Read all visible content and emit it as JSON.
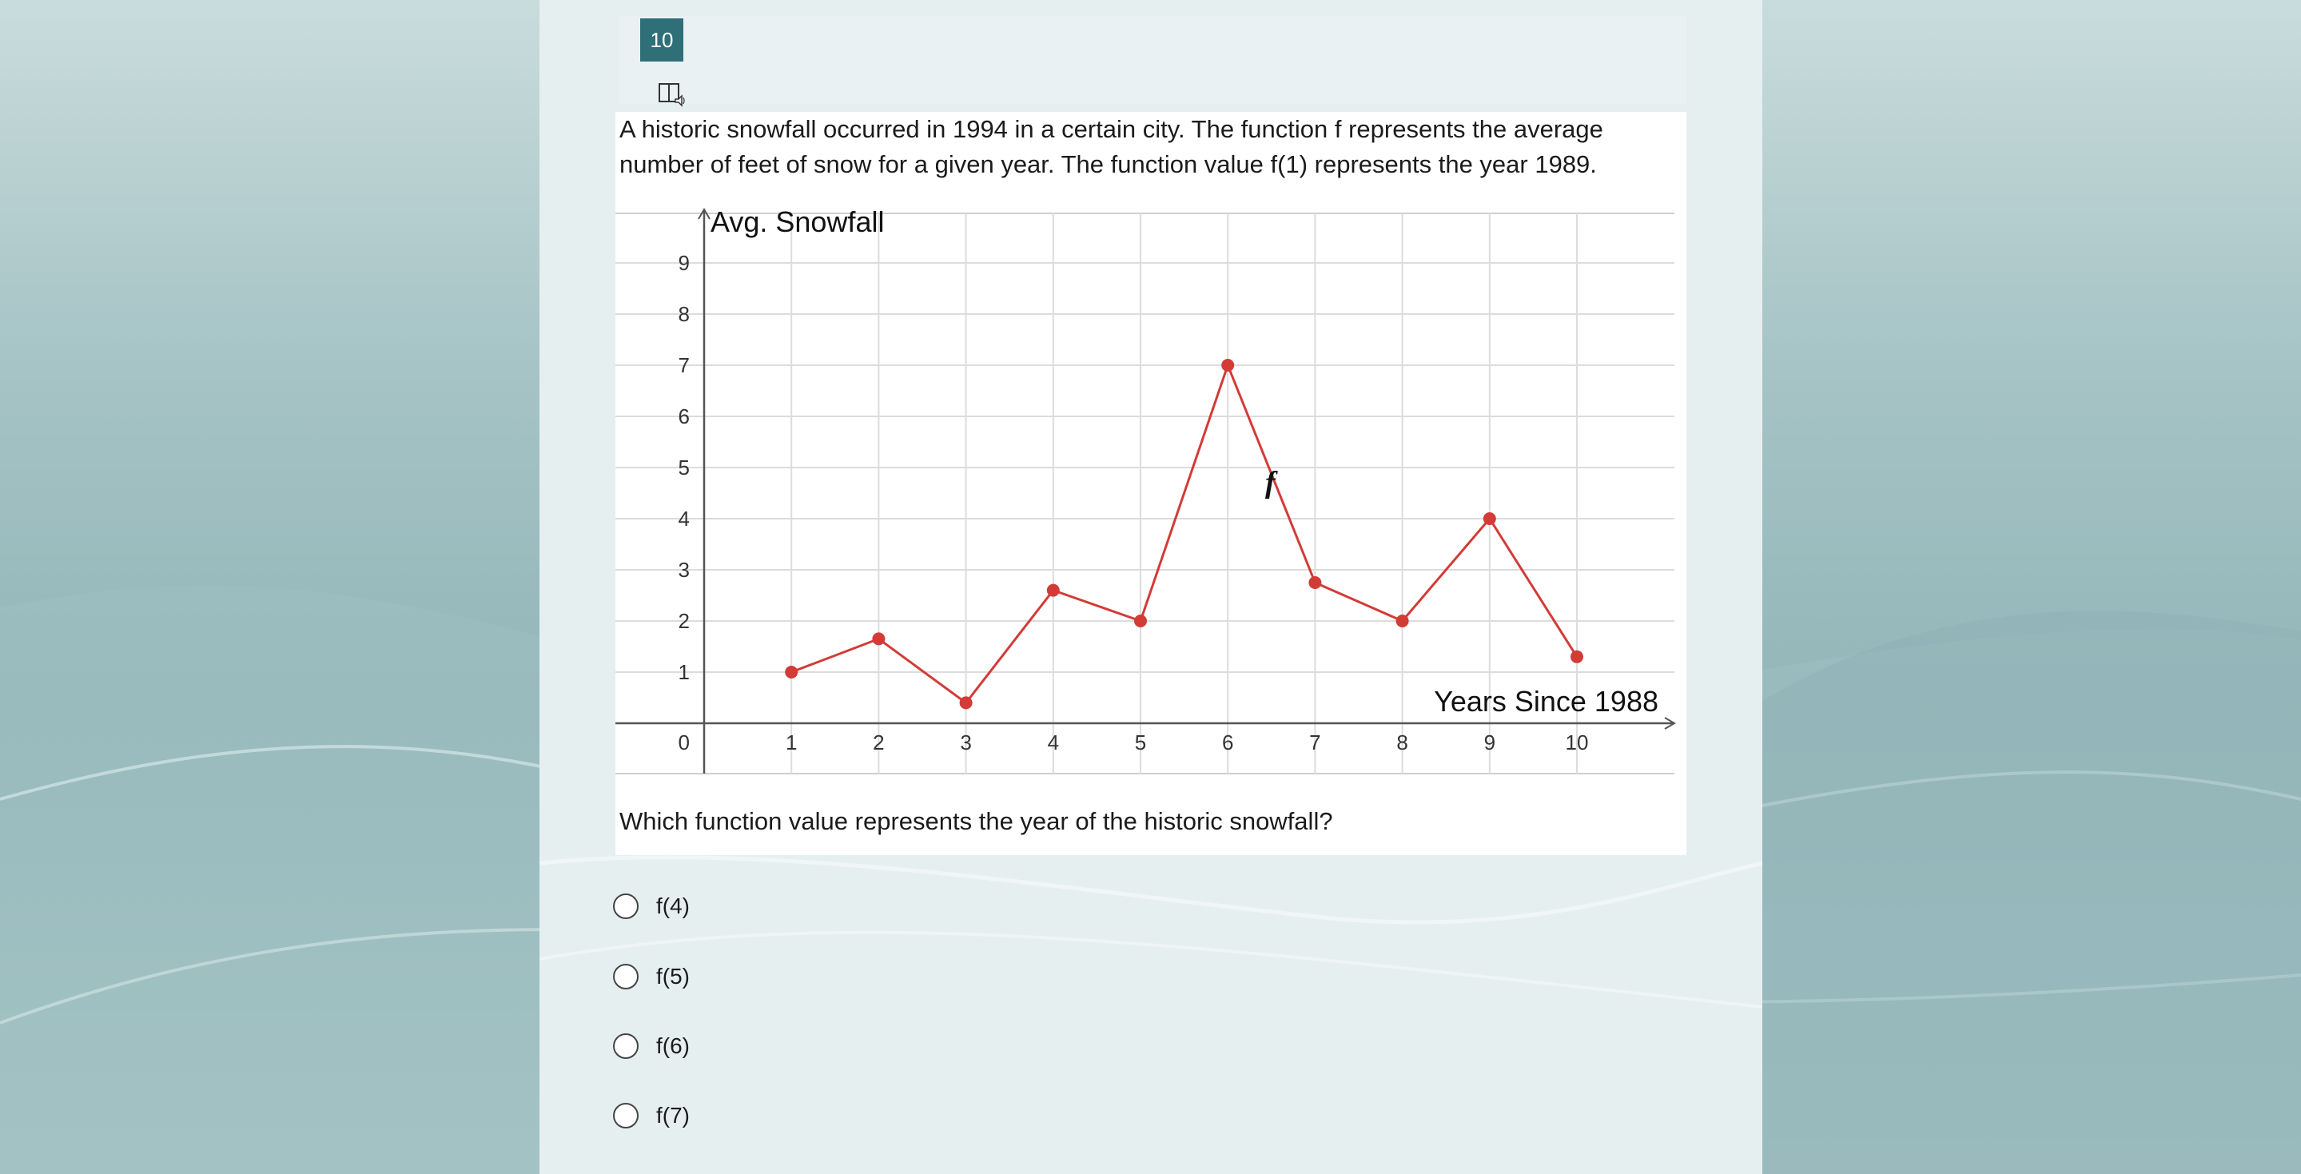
{
  "question": {
    "number": "10",
    "tts_icon": "text-to-speech-icon",
    "stem": "A historic snowfall occurred in 1994 in a certain city. The function f represents the average number of feet of snow for a given year. The function value f(1) represents the year 1989.",
    "prompt": "Which function value represents the year of the historic snowfall?",
    "choices": [
      {
        "label": "f(4)"
      },
      {
        "label": "f(5)"
      },
      {
        "label": "f(6)"
      },
      {
        "label": "f(7)"
      }
    ]
  },
  "chart_data": {
    "type": "line",
    "title": "",
    "xlabel": "Years Since 1988",
    "ylabel": "Avg. Snowfall",
    "function_label": "f",
    "origin_label": "0",
    "x_ticks": [
      "1",
      "2",
      "3",
      "4",
      "5",
      "6",
      "7",
      "8",
      "9",
      "10"
    ],
    "y_ticks": [
      "1",
      "2",
      "3",
      "4",
      "5",
      "6",
      "7",
      "8",
      "9"
    ],
    "xlim": [
      -1,
      11
    ],
    "ylim": [
      -1,
      10
    ],
    "grid": true,
    "color": "#d33b36",
    "x": [
      1,
      2,
      3,
      4,
      5,
      6,
      7,
      8,
      9,
      10
    ],
    "y": [
      1,
      1.65,
      0.4,
      2.6,
      2,
      7,
      2.75,
      2,
      4,
      1.3
    ]
  }
}
